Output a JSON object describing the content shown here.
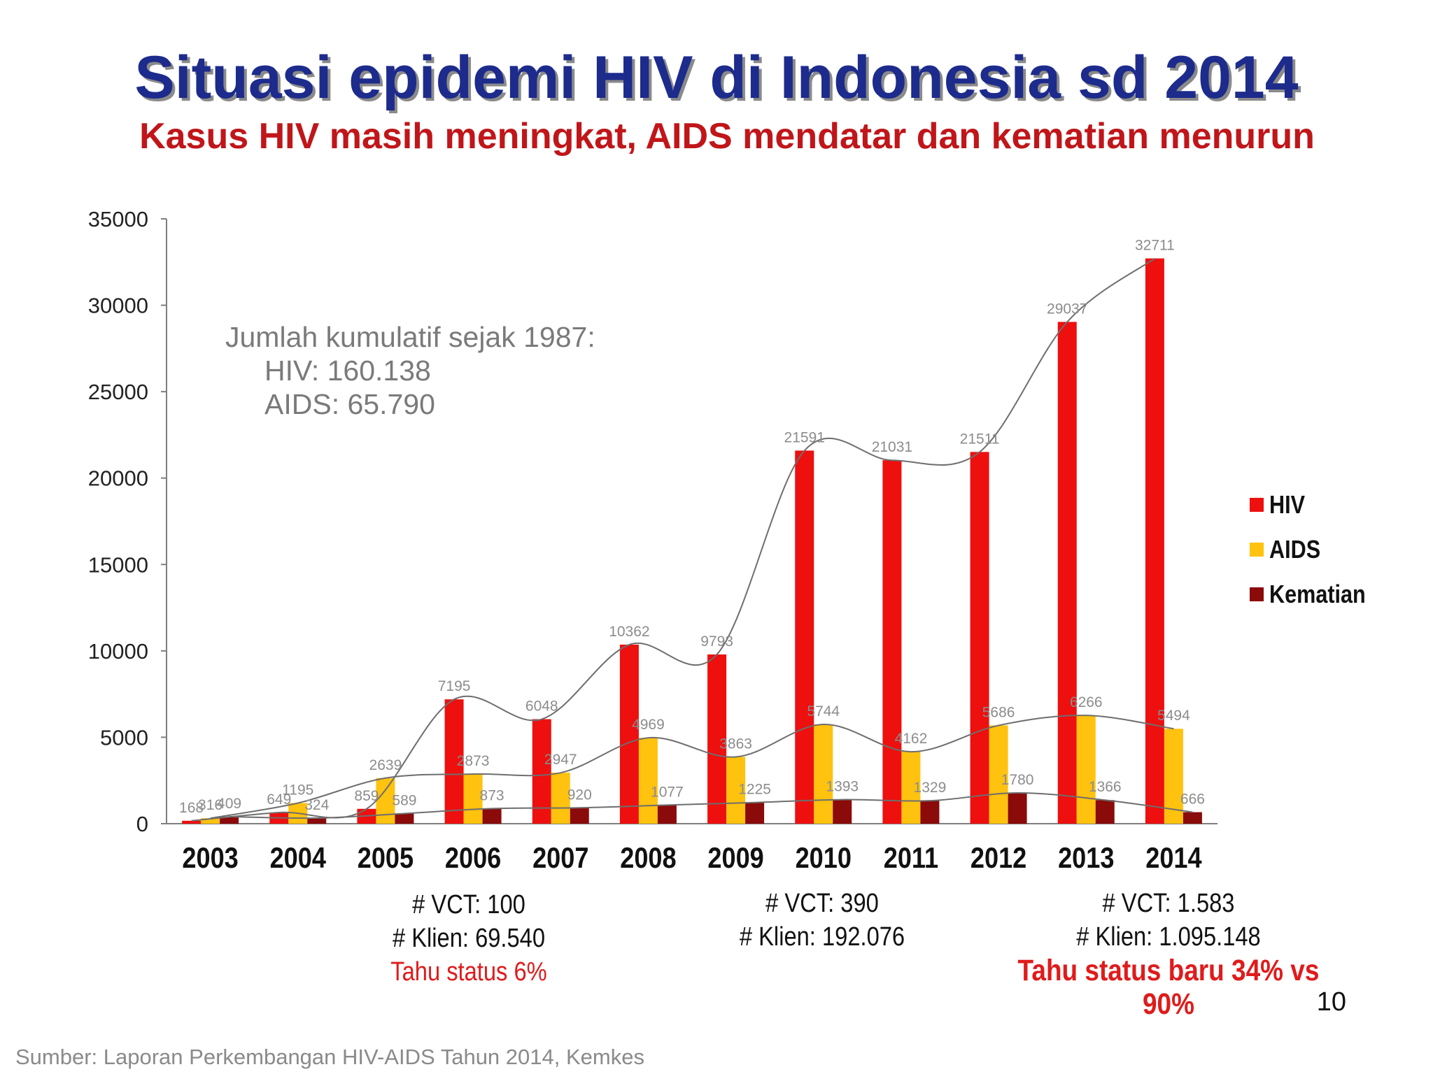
{
  "title": "Situasi epidemi HIV di Indonesia sd 2014",
  "subtitle": "Kasus HIV masih meningkat, AIDS mendatar dan kematian menurun",
  "cumulative_note": {
    "heading": "Jumlah kumulatif sejak 1987:",
    "hiv": "HIV:  160.138",
    "aids": "AIDS: 65.790"
  },
  "vct_notes": [
    {
      "vct": "# VCT: 100",
      "klien": "# Klien: 69.540",
      "status": "Tahu status 6%"
    },
    {
      "vct": "# VCT: 390",
      "klien": "# Klien: 192.076",
      "status": ""
    },
    {
      "vct": "# VCT: 1.583",
      "klien": "# Klien: 1.095.148",
      "status": "Tahu status baru 34% vs 90%"
    }
  ],
  "page_number": "10",
  "source": "Sumber: Laporan Perkembangan HIV-AIDS Tahun 2014, Kemkes",
  "colors": {
    "hiv": "#ee0f0f",
    "aids": "#ffc20e",
    "kematian": "#8b0a0a",
    "title": "#1c2b8c",
    "subtitle": "#c0161a"
  },
  "chart_data": {
    "type": "bar",
    "categories": [
      "2003",
      "2004",
      "2005",
      "2006",
      "2007",
      "2008",
      "2009",
      "2010",
      "2011",
      "2012",
      "2013",
      "2014"
    ],
    "series": [
      {
        "name": "HIV",
        "values": [
          168,
          649,
          859,
          7195,
          6048,
          10362,
          9793,
          21591,
          21031,
          21511,
          29037,
          32711
        ]
      },
      {
        "name": "AIDS",
        "values": [
          316,
          1195,
          2639,
          2873,
          2947,
          4969,
          3863,
          5744,
          4162,
          5686,
          6266,
          5494
        ]
      },
      {
        "name": "Kematian",
        "values": [
          409,
          324,
          589,
          873,
          920,
          1077,
          1225,
          1393,
          1329,
          1780,
          1366,
          666
        ]
      }
    ],
    "y_ticks": [
      "0",
      "5000",
      "10000",
      "15000",
      "20000",
      "25000",
      "30000",
      "35000"
    ],
    "ylim": [
      0,
      35000
    ],
    "legend_position": "right",
    "grid": false,
    "trend_lines": true
  }
}
